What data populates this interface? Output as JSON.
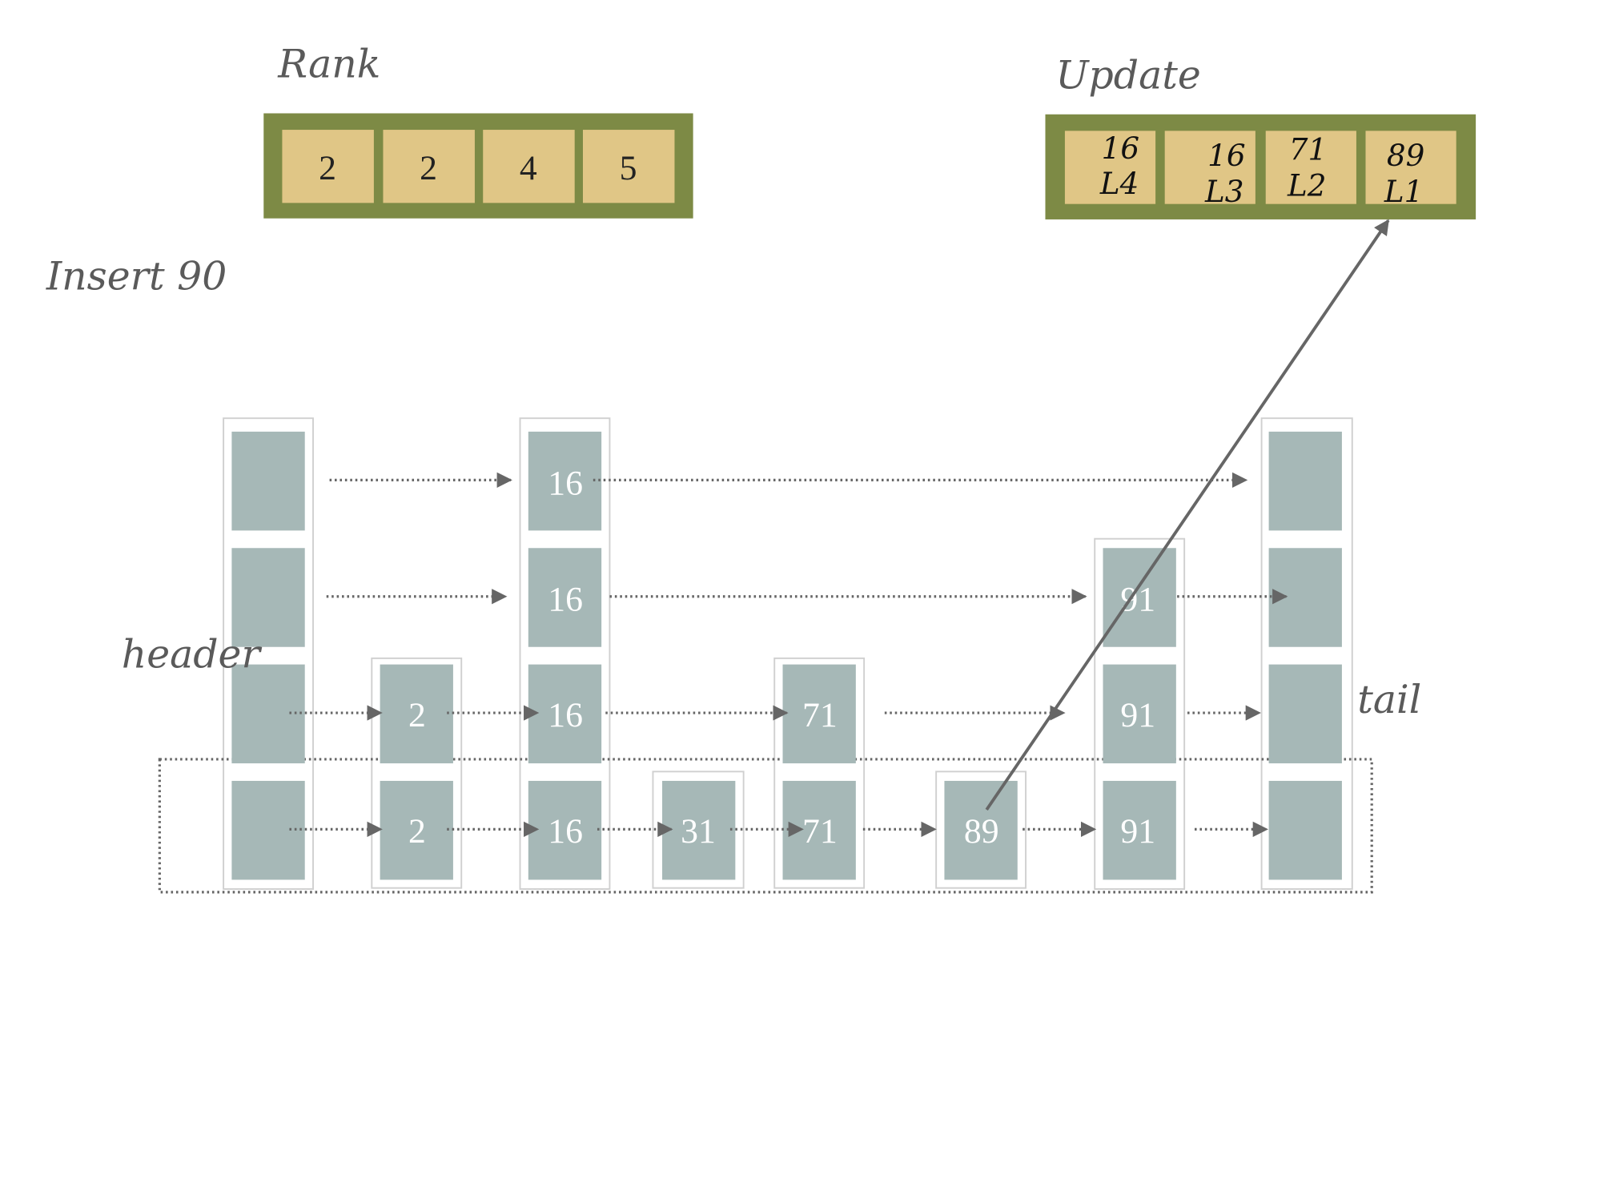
{
  "titles": {
    "rank": "Rank",
    "update": "Update",
    "insert": "Insert 90",
    "header": "header",
    "tail": "tail"
  },
  "rank": [
    "2",
    "2",
    "4",
    "5"
  ],
  "update": [
    {
      "node": "16",
      "level": "L4"
    },
    {
      "node": "16",
      "level": "L3"
    },
    {
      "node": "71",
      "level": "L2"
    },
    {
      "node": "89",
      "level": "L1"
    }
  ],
  "nodes": [
    {
      "key": "",
      "levels": 4,
      "role": "header"
    },
    {
      "key": "2",
      "levels": 2
    },
    {
      "key": "16",
      "levels": 4
    },
    {
      "key": "31",
      "levels": 1
    },
    {
      "key": "71",
      "levels": 2
    },
    {
      "key": "89",
      "levels": 1
    },
    {
      "key": "91",
      "levels": 3
    },
    {
      "key": "",
      "levels": 4,
      "role": "tail"
    }
  ],
  "colors": {
    "array_frame": "#7d8a45",
    "array_cell": "#e0c686",
    "node_fill": "#a6b8b7",
    "node_border": "#d0d0d0",
    "pointer": "#666666"
  }
}
